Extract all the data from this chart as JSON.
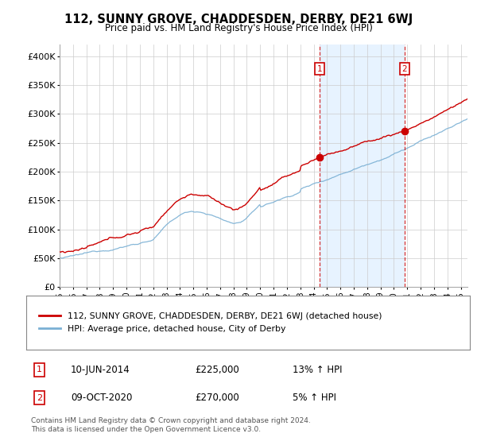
{
  "title": "112, SUNNY GROVE, CHADDESDEN, DERBY, DE21 6WJ",
  "subtitle": "Price paid vs. HM Land Registry's House Price Index (HPI)",
  "ylim": [
    0,
    420000
  ],
  "yticks": [
    0,
    50000,
    100000,
    150000,
    200000,
    250000,
    300000,
    350000,
    400000
  ],
  "ytick_labels": [
    "£0",
    "£50K",
    "£100K",
    "£150K",
    "£200K",
    "£250K",
    "£300K",
    "£350K",
    "£400K"
  ],
  "background_color": "#ffffff",
  "plot_bg_color": "#ffffff",
  "grid_color": "#cccccc",
  "sale1_date": "10-JUN-2014",
  "sale1_price": "£225,000",
  "sale1_hpi": "13% ↑ HPI",
  "sale2_date": "09-OCT-2020",
  "sale2_price": "£270,000",
  "sale2_hpi": "5% ↑ HPI",
  "red_line_color": "#cc0000",
  "blue_line_color": "#7ab0d4",
  "shade_color": "#ddeeff",
  "legend1_label": "112, SUNNY GROVE, CHADDESDEN, DERBY, DE21 6WJ (detached house)",
  "legend2_label": "HPI: Average price, detached house, City of Derby",
  "footer": "Contains HM Land Registry data © Crown copyright and database right 2024.\nThis data is licensed under the Open Government Licence v3.0.",
  "xmin": 1995,
  "xmax": 2025.5
}
